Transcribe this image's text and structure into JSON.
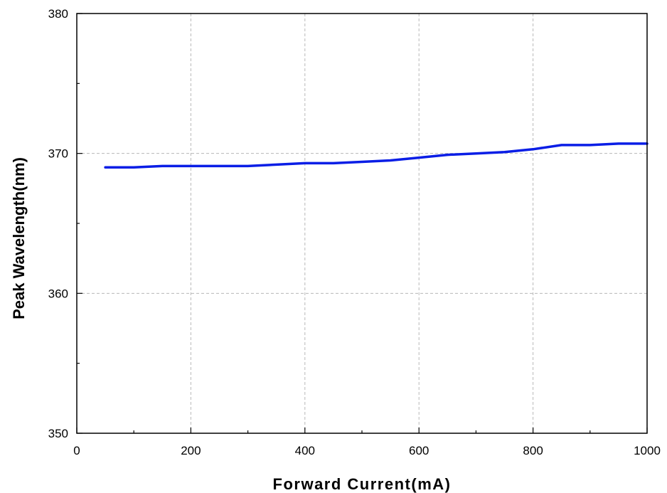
{
  "chart_data": {
    "type": "line",
    "title": "",
    "xlabel": "Forward Current(mA)",
    "ylabel": "Peak Wavelength(nm)",
    "xlim": [
      0,
      1000
    ],
    "ylim": [
      350,
      380
    ],
    "x_major_ticks": [
      0,
      200,
      400,
      600,
      800,
      1000
    ],
    "x_minor_ticks": [
      100,
      300,
      500,
      700,
      900
    ],
    "y_major_ticks": [
      350,
      360,
      370,
      380
    ],
    "y_minor_ticks": [
      355,
      365,
      375
    ],
    "x_tick_labels": [
      "0",
      "200",
      "400",
      "600",
      "800",
      "1000"
    ],
    "y_tick_labels": [
      "350",
      "360",
      "370",
      "380"
    ],
    "grid": true,
    "series": [
      {
        "color": "#0a1ee6",
        "x": [
          50,
          100,
          150,
          200,
          250,
          300,
          350,
          400,
          450,
          500,
          550,
          600,
          650,
          700,
          750,
          800,
          850,
          900,
          950,
          1000
        ],
        "y": [
          369.0,
          369.0,
          369.1,
          369.1,
          369.1,
          369.1,
          369.2,
          369.3,
          369.3,
          369.4,
          369.5,
          369.7,
          369.9,
          370.0,
          370.1,
          370.3,
          370.6,
          370.6,
          370.7,
          370.7
        ]
      }
    ]
  }
}
